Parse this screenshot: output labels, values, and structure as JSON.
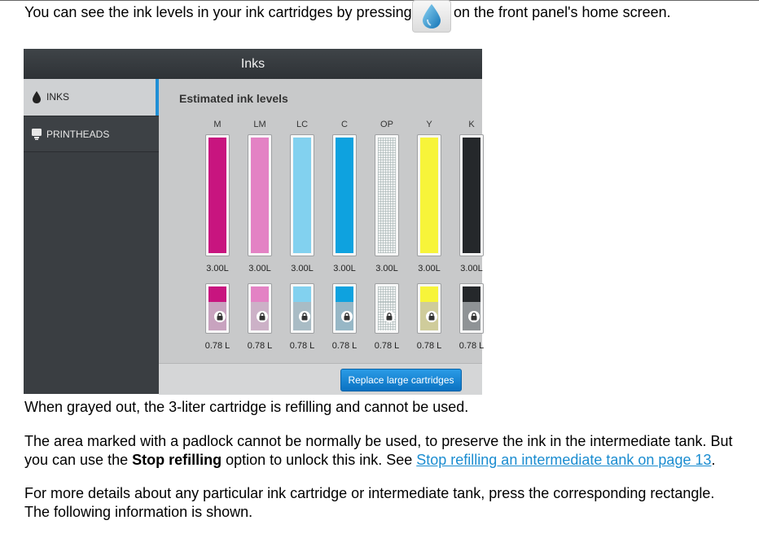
{
  "intro": {
    "before": "You can see the ink levels in your ink cartridges by pressing",
    "after": "on the front panel's home screen.",
    "icon": "ink-droplet-icon"
  },
  "panel": {
    "title": "Inks",
    "sidebar": [
      {
        "label": "INKS",
        "icon": "ink-drop-icon",
        "active": true
      },
      {
        "label": "PRINTHEADS",
        "icon": "printhead-icon",
        "active": false
      }
    ],
    "content_title": "Estimated ink levels",
    "inks": [
      {
        "label": "M",
        "color": "#c8157f",
        "cartridge": "3.00L",
        "tank": "0.78 L",
        "tank_color": "#c8157f",
        "lock_color": "#c8a3bf"
      },
      {
        "label": "LM",
        "color": "#e382c4",
        "cartridge": "3.00L",
        "tank": "0.78 L",
        "tank_color": "#e382c4",
        "lock_color": "#ccb1c7"
      },
      {
        "label": "LC",
        "color": "#82d1ef",
        "cartridge": "3.00L",
        "tank": "0.78 L",
        "tank_color": "#82d1ef",
        "lock_color": "#a9bcc5"
      },
      {
        "label": "C",
        "color": "#0ea2df",
        "cartridge": "3.00L",
        "tank": "0.78 L",
        "tank_color": "#0ea2df",
        "lock_color": "#97b7c6"
      },
      {
        "label": "OP",
        "color": "pattern",
        "cartridge": "3.00L",
        "tank": "0.78 L",
        "tank_color": "pattern",
        "lock_color": "#c3c7c7"
      },
      {
        "label": "Y",
        "color": "#f7f43a",
        "cartridge": "3.00L",
        "tank": "0.78 L",
        "tank_color": "#f7f43a",
        "lock_color": "#cfcc9b"
      },
      {
        "label": "K",
        "color": "#25282b",
        "cartridge": "3.00L",
        "tank": "0.78 L",
        "tank_color": "#25282b",
        "lock_color": "#8f9396"
      }
    ],
    "replace_button": "Replace large cartridges"
  },
  "caption": "When grayed out, the 3-liter cartridge is refilling and cannot be used.",
  "para2": {
    "text1": "The area marked with a padlock cannot be normally be used, to preserve the ink in the intermediate tank. But you can use the ",
    "bold": "Stop refilling",
    "text2": " option to unlock this ink. See ",
    "link": "Stop refilling an intermediate tank on page 13",
    "text3": "."
  },
  "para3": "For more details about any particular ink cartridge or intermediate tank, press the corresponding rectangle. The following information is shown."
}
